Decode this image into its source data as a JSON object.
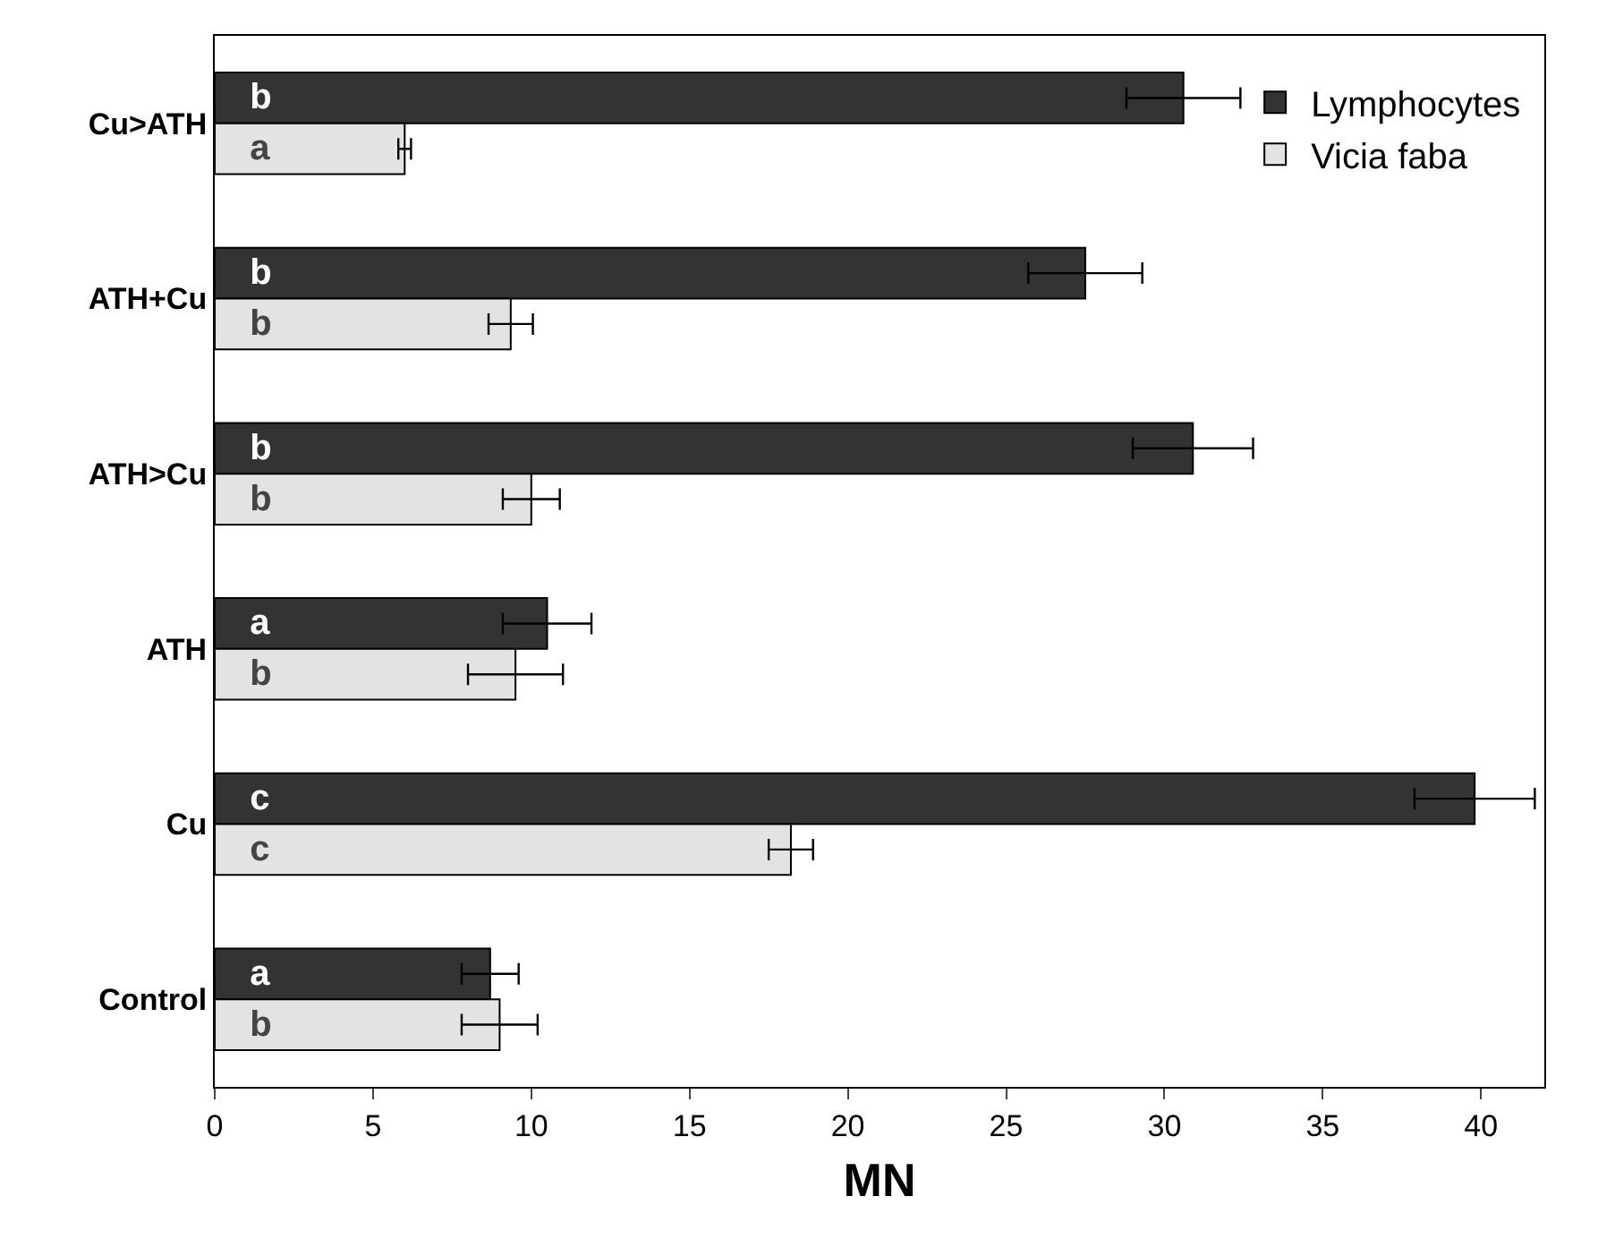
{
  "chart_data": {
    "type": "bar",
    "orientation": "horizontal",
    "xlabel": "MN",
    "categories": [
      "Cu>ATH",
      "ATH+Cu",
      "ATH>Cu",
      "ATH",
      "Cu",
      "Control"
    ],
    "series": [
      {
        "name": "Lymphocytes",
        "color": "#333333",
        "values": [
          30.6,
          27.5,
          30.9,
          10.5,
          39.8,
          8.7
        ],
        "errors": [
          1.8,
          1.8,
          1.9,
          1.4,
          1.9,
          0.9
        ],
        "value_labels": [
          "b",
          "b",
          "b",
          "a",
          "c",
          "a"
        ]
      },
      {
        "name": "Vicia faba",
        "color": "#e3e3e3",
        "values": [
          6.0,
          9.35,
          10.0,
          9.5,
          18.2,
          9.0
        ],
        "errors": [
          0.2,
          0.7,
          0.9,
          1.5,
          0.7,
          1.2
        ],
        "value_labels": [
          "a",
          "b",
          "b",
          "b",
          "c",
          "b"
        ]
      }
    ],
    "xlim": [
      0,
      42
    ],
    "xticks": [
      0,
      5,
      10,
      15,
      20,
      25,
      30,
      35,
      40
    ],
    "grid": false,
    "legend": "top right"
  }
}
